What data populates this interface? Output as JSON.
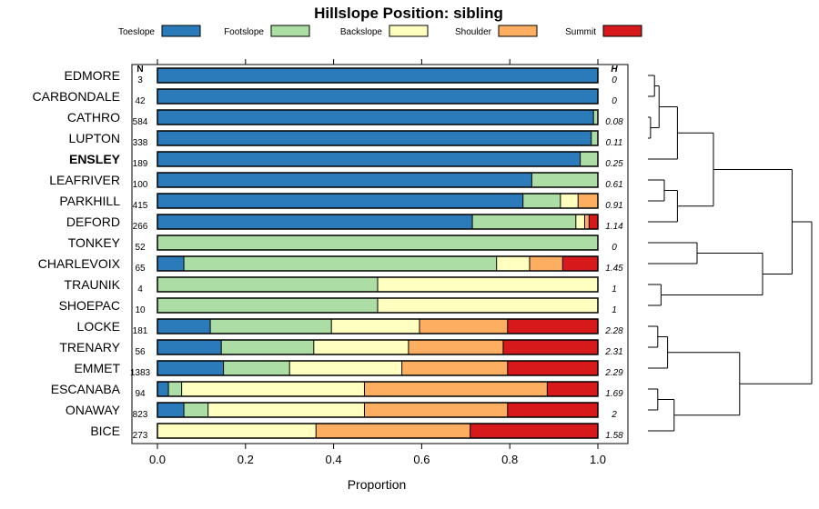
{
  "chart_data": {
    "type": "bar",
    "orientation": "horizontal-stacked",
    "title": "Hillslope Position: sibling",
    "xlabel": "Proportion",
    "xlim": [
      0,
      1
    ],
    "xticks": [
      "0.0",
      "0.2",
      "0.4",
      "0.6",
      "0.8",
      "1.0"
    ],
    "n_header": "N",
    "h_header": "H",
    "legend_position": "top",
    "series": [
      {
        "name": "Toeslope",
        "color": "#2b7bba"
      },
      {
        "name": "Footslope",
        "color": "#abdda4"
      },
      {
        "name": "Backslope",
        "color": "#ffffbf"
      },
      {
        "name": "Shoulder",
        "color": "#fdae61"
      },
      {
        "name": "Summit",
        "color": "#d7191c"
      }
    ],
    "highlight": "ENSLEY",
    "categories": [
      {
        "name": "EDMORE",
        "n": "3",
        "h": "0",
        "values": [
          1.0,
          0.0,
          0.0,
          0.0,
          0.0
        ]
      },
      {
        "name": "CARBONDALE",
        "n": "42",
        "h": "0",
        "values": [
          1.0,
          0.0,
          0.0,
          0.0,
          0.0
        ]
      },
      {
        "name": "CATHRO",
        "n": "584",
        "h": "0.08",
        "values": [
          0.99,
          0.01,
          0.0,
          0.0,
          0.0
        ]
      },
      {
        "name": "LUPTON",
        "n": "338",
        "h": "0.11",
        "values": [
          0.985,
          0.015,
          0.0,
          0.0,
          0.0
        ]
      },
      {
        "name": "ENSLEY",
        "n": "189",
        "h": "0.25",
        "values": [
          0.96,
          0.04,
          0.0,
          0.0,
          0.0
        ]
      },
      {
        "name": "LEAFRIVER",
        "n": "100",
        "h": "0.61",
        "values": [
          0.85,
          0.15,
          0.0,
          0.0,
          0.0
        ]
      },
      {
        "name": "PARKHILL",
        "n": "415",
        "h": "0.91",
        "values": [
          0.83,
          0.085,
          0.04,
          0.045,
          0.0
        ]
      },
      {
        "name": "DEFORD",
        "n": "266",
        "h": "1.14",
        "values": [
          0.715,
          0.235,
          0.02,
          0.01,
          0.02
        ]
      },
      {
        "name": "TONKEY",
        "n": "52",
        "h": "0",
        "values": [
          0.0,
          1.0,
          0.0,
          0.0,
          0.0
        ]
      },
      {
        "name": "CHARLEVOIX",
        "n": "65",
        "h": "1.45",
        "values": [
          0.06,
          0.71,
          0.075,
          0.075,
          0.08
        ]
      },
      {
        "name": "TRAUNIK",
        "n": "4",
        "h": "1",
        "values": [
          0.0,
          0.5,
          0.5,
          0.0,
          0.0
        ]
      },
      {
        "name": "SHOEPAC",
        "n": "10",
        "h": "1",
        "values": [
          0.0,
          0.5,
          0.5,
          0.0,
          0.0
        ]
      },
      {
        "name": "LOCKE",
        "n": "181",
        "h": "2.28",
        "values": [
          0.12,
          0.275,
          0.2,
          0.2,
          0.205
        ]
      },
      {
        "name": "TRENARY",
        "n": "56",
        "h": "2.31",
        "values": [
          0.145,
          0.21,
          0.215,
          0.215,
          0.215
        ]
      },
      {
        "name": "EMMET",
        "n": "1383",
        "h": "2.29",
        "values": [
          0.15,
          0.15,
          0.255,
          0.24,
          0.205
        ]
      },
      {
        "name": "ESCANABA",
        "n": "94",
        "h": "1.69",
        "values": [
          0.025,
          0.03,
          0.415,
          0.415,
          0.115
        ]
      },
      {
        "name": "ONAWAY",
        "n": "823",
        "h": "2",
        "values": [
          0.06,
          0.055,
          0.355,
          0.325,
          0.205
        ]
      },
      {
        "name": "BICE",
        "n": "273",
        "h": "1.58",
        "values": [
          0.0,
          0.0,
          0.36,
          0.35,
          0.29
        ]
      }
    ],
    "dendrogram": {
      "label": "",
      "merges": [
        [
          0,
          1,
          0.1
        ],
        [
          2,
          3,
          0.04
        ],
        [
          18,
          19,
          0.17
        ],
        [
          4,
          20,
          0.45
        ],
        [
          5,
          6,
          0.25
        ],
        [
          22,
          7,
          0.45
        ],
        [
          21,
          23,
          1.0
        ],
        [
          8,
          9,
          0.75
        ],
        [
          10,
          11,
          0.2
        ],
        [
          25,
          26,
          1.75
        ],
        [
          24,
          27,
          2.2
        ],
        [
          12,
          13,
          0.15
        ],
        [
          29,
          14,
          0.3
        ],
        [
          15,
          16,
          0.15
        ],
        [
          31,
          17,
          0.4
        ],
        [
          30,
          32,
          1.4
        ],
        [
          28,
          33,
          2.5
        ]
      ],
      "max_height": 2.5
    }
  }
}
